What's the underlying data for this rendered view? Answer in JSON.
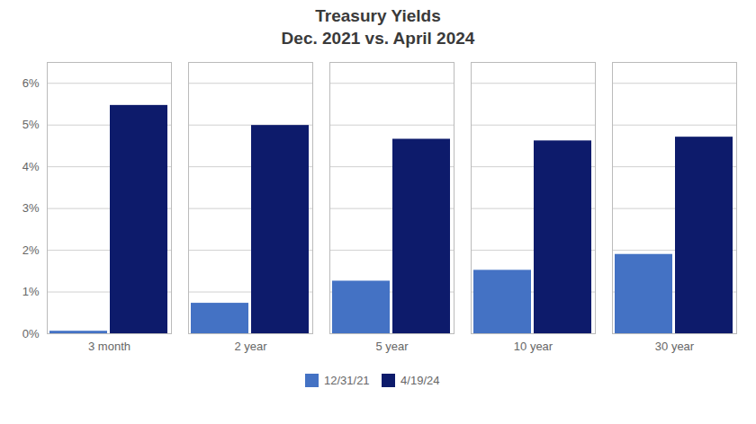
{
  "chart_data": {
    "type": "bar",
    "title": "Treasury Yields",
    "subtitle": "Dec. 2021 vs. April 2024",
    "categories": [
      "3 month",
      "2 year",
      "5 year",
      "10 year",
      "30 year"
    ],
    "series": [
      {
        "name": "12/31/21",
        "color": "#4472C4",
        "values": [
          0.06,
          0.73,
          1.26,
          1.52,
          1.9
        ]
      },
      {
        "name": "4/19/24",
        "color": "#0D1B6B",
        "values": [
          5.47,
          4.99,
          4.66,
          4.62,
          4.71
        ]
      }
    ],
    "ylim": [
      0,
      6.5
    ],
    "yticks": [
      {
        "value": 0,
        "label": "0%"
      },
      {
        "value": 1,
        "label": "1%"
      },
      {
        "value": 2,
        "label": "2%"
      },
      {
        "value": 3,
        "label": "3%"
      },
      {
        "value": 4,
        "label": "4%"
      },
      {
        "value": 5,
        "label": "5%"
      },
      {
        "value": 6,
        "label": "6%"
      }
    ],
    "grid": true,
    "legend": "bottom"
  }
}
